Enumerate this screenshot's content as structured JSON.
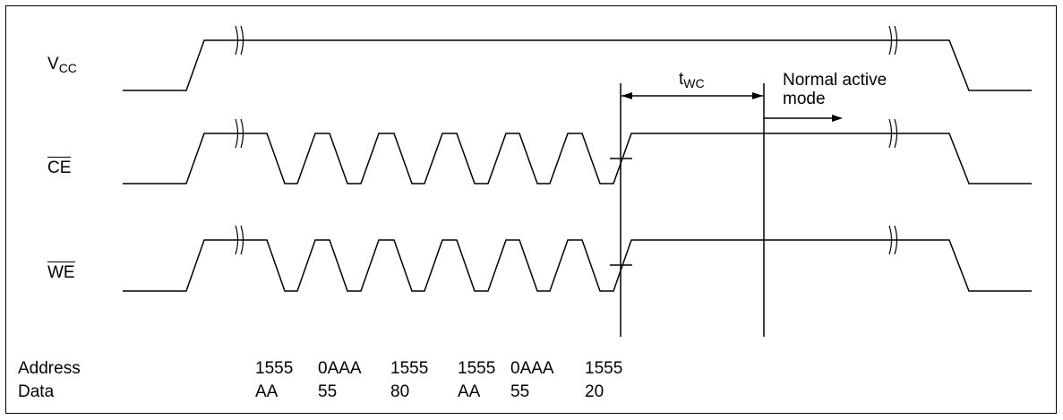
{
  "signals": {
    "vcc": {
      "main": "V",
      "sub": "CC"
    },
    "ce": {
      "main": "CE"
    },
    "we": {
      "main": "WE"
    }
  },
  "timing": {
    "twc": {
      "main": "t",
      "sub": "WC"
    }
  },
  "annotations": {
    "mode_line1": "Normal active",
    "mode_line2": "mode"
  },
  "table": {
    "address_label": "Address",
    "data_label": "Data",
    "addresses": [
      "1555",
      "0AAA",
      "1555",
      "1555",
      "0AAA",
      "1555"
    ],
    "data": [
      "AA",
      "55",
      "80",
      "AA",
      "55",
      "20"
    ]
  }
}
